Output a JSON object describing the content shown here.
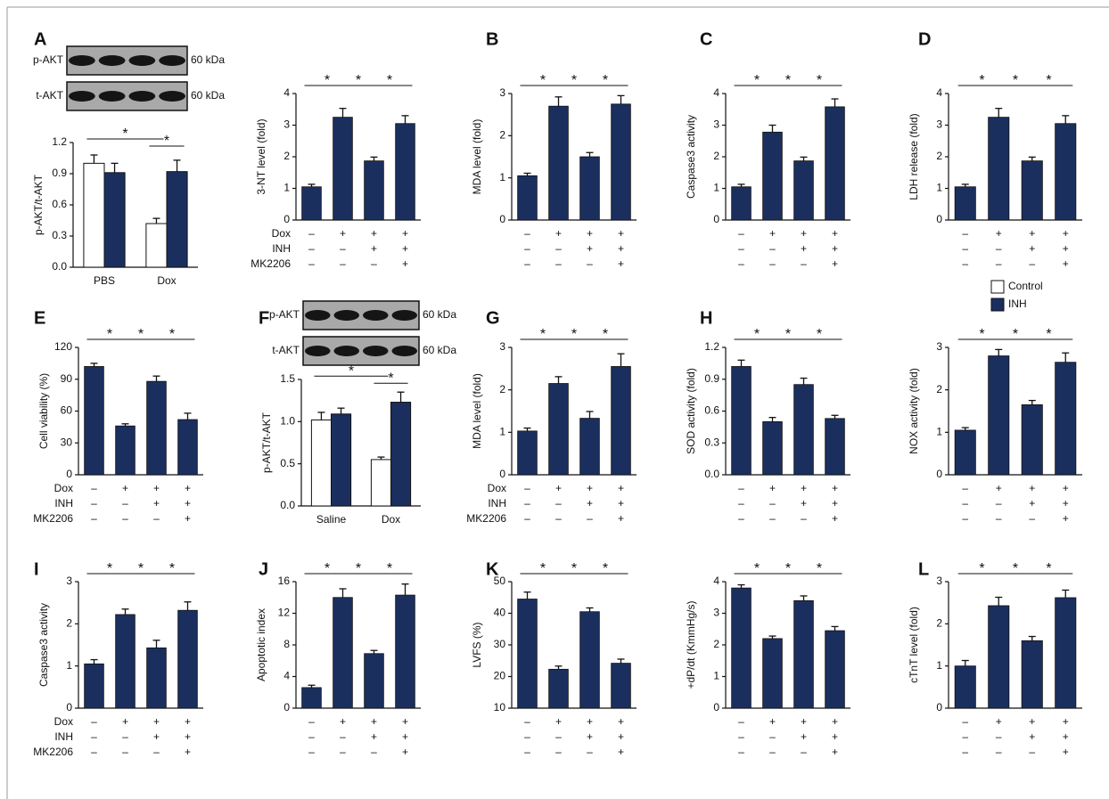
{
  "chart_data": [
    {
      "type": "grouped-bar",
      "panel": "A",
      "ylabel": "p-AKT/t-AKT",
      "blot": {
        "rows": [
          "p-AKT",
          "t-AKT"
        ],
        "size": "60 kDa"
      },
      "categories": [
        "PBS",
        "Dox"
      ],
      "series": [
        {
          "name": "Control",
          "color": "#ffffff",
          "values": [
            1.0,
            0.42
          ],
          "errors": [
            0.08,
            0.05
          ]
        },
        {
          "name": "INH",
          "color": "#1b2f5f",
          "values": [
            0.91,
            0.92
          ],
          "errors": [
            0.09,
            0.11
          ]
        }
      ],
      "ylim": [
        0,
        1.2
      ],
      "yticks": [
        {
          "value": 0,
          "label": "0.0"
        },
        0.3,
        0.6,
        0.9,
        1.2
      ],
      "significance": [
        {
          "from": 0,
          "to": 2,
          "label": "*"
        },
        {
          "from": 2,
          "to": 3,
          "label": "*"
        }
      ]
    },
    {
      "type": "bar",
      "ylabel": "3-NT level (fold)",
      "color": "#1b2f5f",
      "values": [
        1.05,
        3.25,
        1.87,
        3.05
      ],
      "errors": [
        0.08,
        0.28,
        0.12,
        0.25
      ],
      "ylim": [
        0,
        4
      ],
      "yticks": [
        0,
        1,
        2,
        3,
        4
      ],
      "treatment_labels": [
        "Dox",
        "INH",
        "MK2206"
      ],
      "treatments": [
        [
          "–",
          "+",
          "+",
          "+"
        ],
        [
          "–",
          "–",
          "+",
          "+"
        ],
        [
          "–",
          "–",
          "–",
          "+"
        ]
      ],
      "significance": [
        {
          "from": 0,
          "to": 1,
          "label": "*"
        },
        {
          "from": 1,
          "to": 2,
          "label": "*"
        },
        {
          "from": 2,
          "to": 3,
          "label": "*"
        }
      ]
    },
    {
      "type": "bar",
      "panel": "B",
      "ylabel": "MDA level (fold)",
      "color": "#1b2f5f",
      "values": [
        1.05,
        2.7,
        1.5,
        2.75
      ],
      "errors": [
        0.06,
        0.22,
        0.1,
        0.2
      ],
      "ylim": [
        0,
        3
      ],
      "yticks": [
        0,
        1,
        2,
        3
      ],
      "treatments": [
        [
          "–",
          "+",
          "+",
          "+"
        ],
        [
          "–",
          "–",
          "+",
          "+"
        ],
        [
          "–",
          "–",
          "–",
          "+"
        ]
      ],
      "significance": [
        {
          "from": 0,
          "to": 1,
          "label": "*"
        },
        {
          "from": 1,
          "to": 2,
          "label": "*"
        },
        {
          "from": 2,
          "to": 3,
          "label": "*"
        }
      ]
    },
    {
      "type": "bar",
      "panel": "C",
      "ylabel": "Caspase3 activity",
      "color": "#1b2f5f",
      "values": [
        1.05,
        2.78,
        1.87,
        3.58
      ],
      "errors": [
        0.08,
        0.22,
        0.12,
        0.25
      ],
      "ylim": [
        0,
        4
      ],
      "yticks": [
        0,
        1,
        2,
        3,
        4
      ],
      "treatments": [
        [
          "–",
          "+",
          "+",
          "+"
        ],
        [
          "–",
          "–",
          "+",
          "+"
        ],
        [
          "–",
          "–",
          "–",
          "+"
        ]
      ],
      "significance": [
        {
          "from": 0,
          "to": 1,
          "label": "*"
        },
        {
          "from": 1,
          "to": 2,
          "label": "*"
        },
        {
          "from": 2,
          "to": 3,
          "label": "*"
        }
      ]
    },
    {
      "type": "bar",
      "panel": "D",
      "ylabel": "LDH release (fold)",
      "color": "#1b2f5f",
      "values": [
        1.05,
        3.25,
        1.87,
        3.05
      ],
      "errors": [
        0.08,
        0.28,
        0.12,
        0.25
      ],
      "ylim": [
        0,
        4
      ],
      "yticks": [
        0,
        1,
        2,
        3,
        4
      ],
      "treatments": [
        [
          "–",
          "+",
          "+",
          "+"
        ],
        [
          "–",
          "–",
          "+",
          "+"
        ],
        [
          "–",
          "–",
          "–",
          "+"
        ]
      ],
      "significance": [
        {
          "from": 0,
          "to": 1,
          "label": "*"
        },
        {
          "from": 1,
          "to": 2,
          "label": "*"
        },
        {
          "from": 2,
          "to": 3,
          "label": "*"
        }
      ]
    },
    {
      "type": "bar",
      "panel": "E",
      "ylabel": "Cell viability (%)",
      "color": "#1b2f5f",
      "values": [
        102,
        46,
        88,
        52
      ],
      "errors": [
        3,
        2,
        5,
        6
      ],
      "ylim": [
        0,
        120
      ],
      "yticks": [
        0,
        30,
        60,
        90,
        120
      ],
      "treatment_labels": [
        "Dox",
        "INH",
        "MK2206"
      ],
      "treatments": [
        [
          "–",
          "+",
          "+",
          "+"
        ],
        [
          "–",
          "–",
          "+",
          "+"
        ],
        [
          "–",
          "–",
          "–",
          "+"
        ]
      ],
      "significance": [
        {
          "from": 0,
          "to": 1,
          "label": "*"
        },
        {
          "from": 1,
          "to": 2,
          "label": "*"
        },
        {
          "from": 2,
          "to": 3,
          "label": "*"
        }
      ]
    },
    {
      "type": "grouped-bar",
      "panel": "F",
      "ylabel": "p-AKT/t-AKT",
      "blot": {
        "rows": [
          "p-AKT",
          "t-AKT"
        ],
        "size": "60 kDa"
      },
      "categories": [
        "Saline",
        "Dox"
      ],
      "series": [
        {
          "color": "#ffffff",
          "values": [
            1.02,
            0.55
          ],
          "errors": [
            0.09,
            0.03
          ]
        },
        {
          "color": "#1b2f5f",
          "values": [
            1.09,
            1.23
          ],
          "errors": [
            0.07,
            0.12
          ]
        }
      ],
      "ylim": [
        0,
        1.5
      ],
      "yticks": [
        {
          "value": 0,
          "label": "0.0"
        },
        0.5,
        {
          "value": 1,
          "label": "1.0"
        },
        1.5
      ],
      "significance": [
        {
          "from": 0,
          "to": 2,
          "label": "*"
        },
        {
          "from": 2,
          "to": 3,
          "label": "*"
        }
      ]
    },
    {
      "type": "bar",
      "panel": "G",
      "ylabel": "MDA level (fold)",
      "color": "#1b2f5f",
      "values": [
        1.03,
        2.15,
        1.33,
        2.55
      ],
      "errors": [
        0.07,
        0.16,
        0.16,
        0.3
      ],
      "ylim": [
        0,
        3
      ],
      "yticks": [
        0,
        1,
        2,
        3
      ],
      "treatment_labels": [
        "Dox",
        "INH",
        "MK2206"
      ],
      "treatments": [
        [
          "–",
          "+",
          "+",
          "+"
        ],
        [
          "–",
          "–",
          "+",
          "+"
        ],
        [
          "–",
          "–",
          "–",
          "+"
        ]
      ],
      "significance": [
        {
          "from": 0,
          "to": 1,
          "label": "*"
        },
        {
          "from": 1,
          "to": 2,
          "label": "*"
        },
        {
          "from": 2,
          "to": 3,
          "label": "*"
        }
      ]
    },
    {
      "type": "bar",
      "panel": "H",
      "ylabel": "SOD activity (fold)",
      "color": "#1b2f5f",
      "values": [
        1.02,
        0.5,
        0.85,
        0.53
      ],
      "errors": [
        0.06,
        0.04,
        0.06,
        0.03
      ],
      "ylim": [
        0,
        1.2
      ],
      "yticks": [
        {
          "value": 0,
          "label": "0.0"
        },
        0.3,
        0.6,
        0.9,
        1.2
      ],
      "treatments": [
        [
          "–",
          "+",
          "+",
          "+"
        ],
        [
          "–",
          "–",
          "+",
          "+"
        ],
        [
          "–",
          "–",
          "–",
          "+"
        ]
      ],
      "significance": [
        {
          "from": 0,
          "to": 1,
          "label": "*"
        },
        {
          "from": 1,
          "to": 2,
          "label": "*"
        },
        {
          "from": 2,
          "to": 3,
          "label": "*"
        }
      ]
    },
    {
      "type": "bar",
      "ylabel": "NOX activity (fold)",
      "color": "#1b2f5f",
      "values": [
        1.05,
        2.8,
        1.65,
        2.65
      ],
      "errors": [
        0.06,
        0.15,
        0.1,
        0.22
      ],
      "ylim": [
        0,
        3
      ],
      "yticks": [
        0,
        1,
        2,
        3
      ],
      "treatments": [
        [
          "–",
          "+",
          "+",
          "+"
        ],
        [
          "–",
          "–",
          "+",
          "+"
        ],
        [
          "–",
          "–",
          "–",
          "+"
        ]
      ],
      "significance": [
        {
          "from": 0,
          "to": 1,
          "label": "*"
        },
        {
          "from": 1,
          "to": 2,
          "label": "*"
        },
        {
          "from": 2,
          "to": 3,
          "label": "*"
        }
      ]
    },
    {
      "type": "bar",
      "panel": "I",
      "ylabel": "Caspase3 activity",
      "color": "#1b2f5f",
      "values": [
        1.05,
        2.22,
        1.43,
        2.32
      ],
      "errors": [
        0.1,
        0.13,
        0.18,
        0.2
      ],
      "ylim": [
        0,
        3
      ],
      "yticks": [
        0,
        1,
        2,
        3
      ],
      "treatment_labels": [
        "Dox",
        "INH",
        "MK2206"
      ],
      "treatments": [
        [
          "–",
          "+",
          "+",
          "+"
        ],
        [
          "–",
          "–",
          "+",
          "+"
        ],
        [
          "–",
          "–",
          "–",
          "+"
        ]
      ],
      "significance": [
        {
          "from": 0,
          "to": 1,
          "label": "*"
        },
        {
          "from": 1,
          "to": 2,
          "label": "*"
        },
        {
          "from": 2,
          "to": 3,
          "label": "*"
        }
      ]
    },
    {
      "type": "bar",
      "panel": "J",
      "ylabel": "Apoptotic index",
      "color": "#1b2f5f",
      "values": [
        2.6,
        14,
        6.9,
        14.3
      ],
      "errors": [
        0.3,
        1.1,
        0.4,
        1.4
      ],
      "ylim": [
        0,
        16
      ],
      "yticks": [
        0,
        4,
        8,
        12,
        16
      ],
      "treatments": [
        [
          "–",
          "+",
          "+",
          "+"
        ],
        [
          "–",
          "–",
          "+",
          "+"
        ],
        [
          "–",
          "–",
          "–",
          "+"
        ]
      ],
      "significance": [
        {
          "from": 0,
          "to": 1,
          "label": "*"
        },
        {
          "from": 1,
          "to": 2,
          "label": "*"
        },
        {
          "from": 2,
          "to": 3,
          "label": "*"
        }
      ]
    },
    {
      "type": "bar",
      "panel": "K",
      "ylabel": "LVFS (%)",
      "color": "#1b2f5f",
      "values": [
        44.5,
        22.3,
        40.5,
        24.2
      ],
      "errors": [
        2.2,
        1,
        1.2,
        1.3
      ],
      "ylim": [
        10,
        50
      ],
      "yticks": [
        10,
        20,
        30,
        40,
        50
      ],
      "treatments": [
        [
          "–",
          "+",
          "+",
          "+"
        ],
        [
          "–",
          "–",
          "+",
          "+"
        ],
        [
          "–",
          "–",
          "–",
          "+"
        ]
      ],
      "significance": [
        {
          "from": 0,
          "to": 1,
          "label": "*"
        },
        {
          "from": 1,
          "to": 2,
          "label": "*"
        },
        {
          "from": 2,
          "to": 3,
          "label": "*"
        }
      ]
    },
    {
      "type": "bar",
      "ylabel": "+dP/dt (KmmHg/s)",
      "color": "#1b2f5f",
      "values": [
        3.8,
        2.2,
        3.4,
        2.45
      ],
      "errors": [
        0.1,
        0.08,
        0.15,
        0.13
      ],
      "ylim": [
        0,
        4
      ],
      "yticks": [
        0,
        1,
        2,
        3,
        4
      ],
      "treatments": [
        [
          "–",
          "+",
          "+",
          "+"
        ],
        [
          "–",
          "–",
          "+",
          "+"
        ],
        [
          "–",
          "–",
          "–",
          "+"
        ]
      ],
      "significance": [
        {
          "from": 0,
          "to": 1,
          "label": "*"
        },
        {
          "from": 1,
          "to": 2,
          "label": "*"
        },
        {
          "from": 2,
          "to": 3,
          "label": "*"
        }
      ]
    },
    {
      "type": "bar",
      "panel": "L",
      "ylabel": "cTnT level (fold)",
      "color": "#1b2f5f",
      "values": [
        1.0,
        2.43,
        1.6,
        2.62
      ],
      "errors": [
        0.13,
        0.2,
        0.1,
        0.18
      ],
      "ylim": [
        0,
        3
      ],
      "yticks": [
        0,
        1,
        2,
        3
      ],
      "treatments": [
        [
          "–",
          "+",
          "+",
          "+"
        ],
        [
          "–",
          "–",
          "+",
          "+"
        ],
        [
          "–",
          "–",
          "–",
          "+"
        ]
      ],
      "significance": [
        {
          "from": 0,
          "to": 1,
          "label": "*"
        },
        {
          "from": 1,
          "to": 2,
          "label": "*"
        },
        {
          "from": 2,
          "to": 3,
          "label": "*"
        }
      ]
    }
  ]
}
